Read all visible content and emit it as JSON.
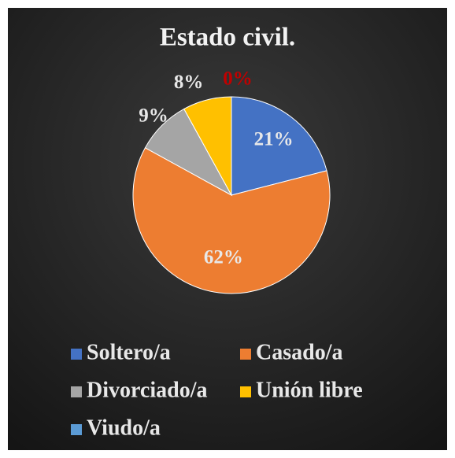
{
  "chart_data": {
    "type": "pie",
    "title": "Estado civil.",
    "categories": [
      "Soltero/a",
      "Casado/a",
      "Divorciado/a",
      "Unión libre",
      "Viudo/a"
    ],
    "values": [
      21,
      62,
      9,
      8,
      0
    ],
    "value_labels": [
      "21%",
      "62%",
      "9%",
      "8%",
      "0%"
    ],
    "colors": [
      "#4472c4",
      "#ed7d31",
      "#a5a5a5",
      "#ffc000",
      "#5b9bd5"
    ],
    "legend": "bottom"
  }
}
